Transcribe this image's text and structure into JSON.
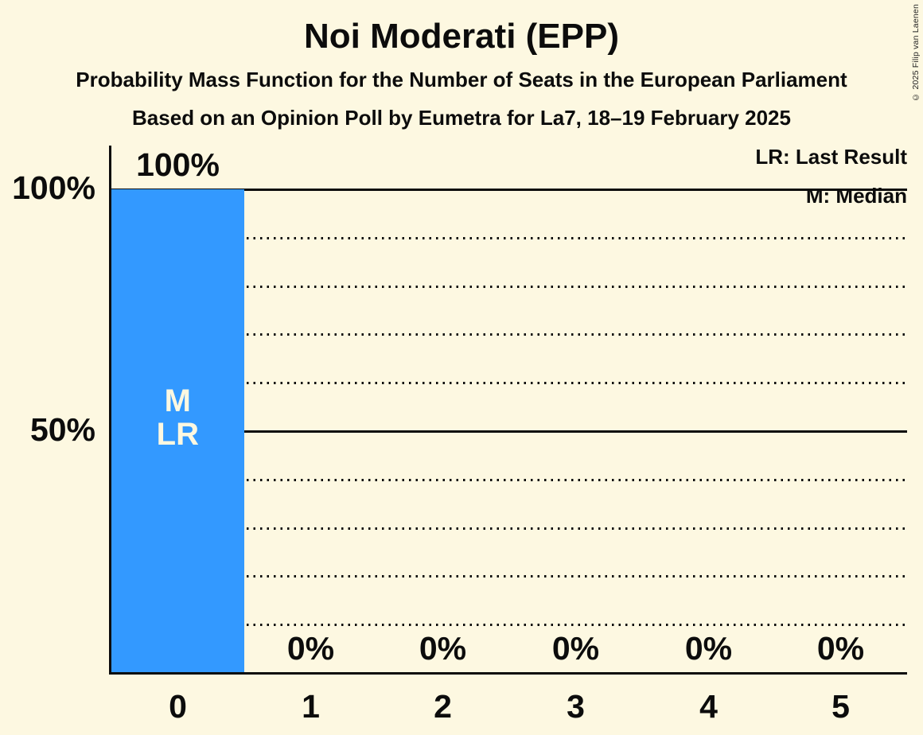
{
  "copyright": "© 2025 Filip van Laenen",
  "colors": {
    "background": "#FDF8E1",
    "bar": "#3399FF",
    "text": "#0C0C0C",
    "bar_label_text": "#FDF8E1"
  },
  "chart_data": {
    "type": "bar",
    "title": "Noi Moderati (EPP)",
    "subtitles": [
      "Probability Mass Function for the Number of Seats in the European Parliament",
      "Based on an Opinion Poll by Eumetra for La7, 18–19 February 2025"
    ],
    "categories": [
      "0",
      "1",
      "2",
      "3",
      "4",
      "5"
    ],
    "values": [
      100,
      0,
      0,
      0,
      0,
      0
    ],
    "value_labels": [
      "100%",
      "0%",
      "0%",
      "0%",
      "0%",
      "0%"
    ],
    "ylim": [
      0,
      100
    ],
    "y_ticks": [
      {
        "value": 100,
        "label": "100%"
      },
      {
        "value": 50,
        "label": "50%"
      }
    ],
    "gridlines": {
      "dotted_step_pct": 10,
      "solid_at_pct": [
        50,
        100
      ]
    },
    "legend": [
      {
        "abbr": "LR",
        "label": "LR: Last Result"
      },
      {
        "abbr": "M",
        "label": "M: Median"
      }
    ],
    "bar_annotations": [
      "M",
      "LR"
    ],
    "annotated_bar_category": "0",
    "legend_position": "top-right"
  }
}
